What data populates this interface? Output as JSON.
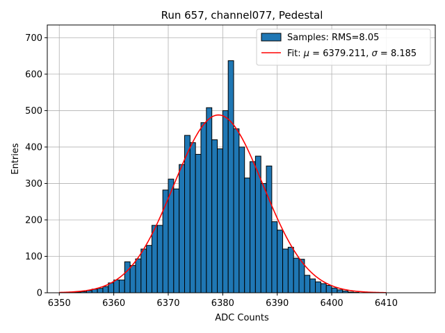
{
  "chart_data": {
    "type": "bar",
    "title": "Run 657, channel077, Pedestal",
    "xlabel": "ADC Counts",
    "ylabel": "Entries",
    "xlim": [
      6347.8,
      6419.0
    ],
    "ylim": [
      0,
      735
    ],
    "xticks": [
      6350,
      6360,
      6370,
      6380,
      6390,
      6400,
      6410
    ],
    "yticks": [
      0,
      100,
      200,
      300,
      400,
      500,
      600,
      700
    ],
    "grid": true,
    "legend_position": "top-right",
    "histogram": {
      "name": "Samples: RMS=8.05",
      "color": "#1f77b4",
      "bin_width": 1,
      "bin_start": 6350,
      "counts": [
        0,
        0,
        1,
        2,
        3,
        6,
        10,
        12,
        17,
        27,
        35,
        35,
        85,
        75,
        93,
        120,
        130,
        185,
        185,
        282,
        312,
        285,
        352,
        432,
        412,
        380,
        467,
        508,
        420,
        395,
        500,
        637,
        450,
        400,
        315,
        360,
        375,
        300,
        348,
        195,
        172,
        120,
        125,
        95,
        92,
        48,
        38,
        30,
        25,
        20,
        13,
        8,
        5,
        2,
        1,
        0,
        0,
        0,
        0,
        0
      ]
    },
    "fit": {
      "name_prefix": "Fit: ",
      "mu_value": "6379.211",
      "sigma_value": "8.185",
      "color": "#ff0000",
      "mu": 6379.211,
      "sigma": 8.185,
      "amplitude": 488,
      "x_range": [
        6350,
        6410
      ]
    }
  }
}
